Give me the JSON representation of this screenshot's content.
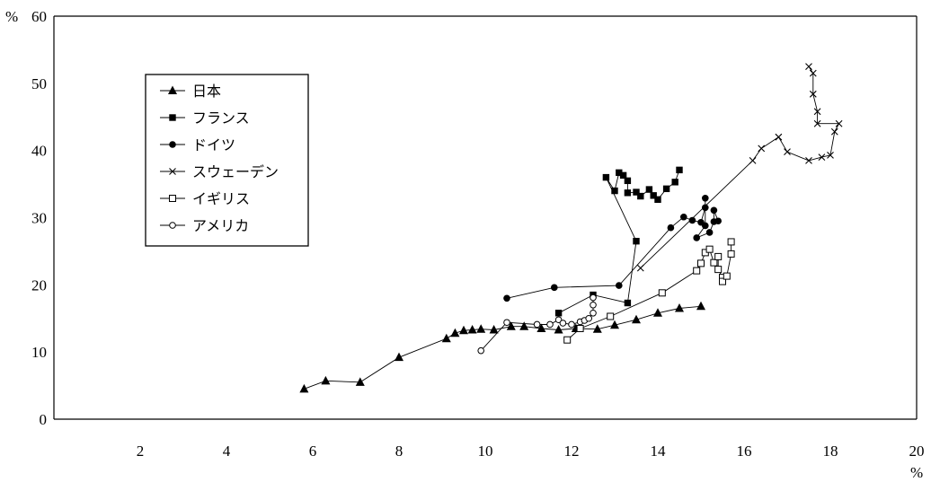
{
  "chart_data": {
    "type": "scatter",
    "title": "",
    "xlabel": "",
    "ylabel": "",
    "x_unit": "%",
    "y_unit": "%",
    "xlim": [
      0,
      20
    ],
    "ylim": [
      0,
      60
    ],
    "x_ticks": [
      2,
      4,
      6,
      8,
      10,
      12,
      14,
      16,
      18,
      20
    ],
    "y_ticks": [
      0,
      10,
      20,
      30,
      40,
      50,
      60
    ],
    "grid": false,
    "legend_position": "upper-left",
    "series": [
      {
        "name": "日本",
        "marker": "triangle-filled",
        "points": [
          [
            5.8,
            4.5
          ],
          [
            6.3,
            5.7
          ],
          [
            7.1,
            5.5
          ],
          [
            8.0,
            9.2
          ],
          [
            9.1,
            12.0
          ],
          [
            9.3,
            12.8
          ],
          [
            9.5,
            13.2
          ],
          [
            9.7,
            13.3
          ],
          [
            9.9,
            13.4
          ],
          [
            10.2,
            13.3
          ],
          [
            10.6,
            13.8
          ],
          [
            10.9,
            13.8
          ],
          [
            11.3,
            13.5
          ],
          [
            11.7,
            13.3
          ],
          [
            12.1,
            13.5
          ],
          [
            12.6,
            13.4
          ],
          [
            13.0,
            14.0
          ],
          [
            13.5,
            14.8
          ],
          [
            14.0,
            15.8
          ],
          [
            14.5,
            16.5
          ],
          [
            15.0,
            16.8
          ]
        ]
      },
      {
        "name": "フランス",
        "marker": "square-filled",
        "points": [
          [
            11.7,
            15.8
          ],
          [
            12.5,
            18.5
          ],
          [
            13.3,
            17.3
          ],
          [
            13.5,
            26.5
          ],
          [
            12.8,
            36.0
          ],
          [
            13.0,
            34.0
          ],
          [
            13.1,
            36.7
          ],
          [
            13.2,
            36.3
          ],
          [
            13.3,
            35.5
          ],
          [
            13.3,
            33.7
          ],
          [
            13.5,
            33.8
          ],
          [
            13.6,
            33.2
          ],
          [
            13.8,
            34.2
          ],
          [
            13.9,
            33.3
          ],
          [
            14.0,
            32.7
          ],
          [
            14.2,
            34.3
          ],
          [
            14.4,
            35.3
          ],
          [
            14.5,
            37.1
          ]
        ]
      },
      {
        "name": "ドイツ",
        "marker": "circle-filled",
        "points": [
          [
            10.5,
            18.0
          ],
          [
            11.6,
            19.6
          ],
          [
            13.1,
            19.9
          ],
          [
            14.3,
            28.5
          ],
          [
            14.6,
            30.1
          ],
          [
            14.8,
            29.6
          ],
          [
            15.0,
            29.3
          ],
          [
            15.1,
            31.5
          ],
          [
            15.1,
            32.9
          ],
          [
            15.1,
            28.8
          ],
          [
            14.9,
            27.0
          ],
          [
            15.2,
            27.8
          ],
          [
            15.3,
            29.4
          ],
          [
            15.3,
            31.1
          ],
          [
            15.4,
            29.5
          ]
        ]
      },
      {
        "name": "スウェーデン",
        "marker": "x",
        "points": [
          [
            13.6,
            22.5
          ],
          [
            16.2,
            38.5
          ],
          [
            16.4,
            40.3
          ],
          [
            16.8,
            42.0
          ],
          [
            17.0,
            39.8
          ],
          [
            17.5,
            38.5
          ],
          [
            17.8,
            39.0
          ],
          [
            18.0,
            39.3
          ],
          [
            18.1,
            42.8
          ],
          [
            18.2,
            44.0
          ],
          [
            17.7,
            44.0
          ],
          [
            17.7,
            45.8
          ],
          [
            17.6,
            48.4
          ],
          [
            17.6,
            51.5
          ],
          [
            17.5,
            52.5
          ]
        ]
      },
      {
        "name": "イギリス",
        "marker": "square-open",
        "points": [
          [
            11.9,
            11.8
          ],
          [
            12.2,
            13.5
          ],
          [
            12.9,
            15.3
          ],
          [
            14.1,
            18.8
          ],
          [
            14.9,
            22.1
          ],
          [
            15.0,
            23.2
          ],
          [
            15.1,
            24.8
          ],
          [
            15.2,
            25.3
          ],
          [
            15.3,
            23.3
          ],
          [
            15.4,
            24.2
          ],
          [
            15.4,
            22.3
          ],
          [
            15.5,
            21.1
          ],
          [
            15.5,
            20.5
          ],
          [
            15.6,
            21.3
          ],
          [
            15.7,
            24.6
          ],
          [
            15.7,
            26.4
          ]
        ]
      },
      {
        "name": "アメリカ",
        "marker": "circle-open",
        "points": [
          [
            9.9,
            10.2
          ],
          [
            10.5,
            14.4
          ],
          [
            11.2,
            14.1
          ],
          [
            11.5,
            14.1
          ],
          [
            11.7,
            14.8
          ],
          [
            11.8,
            14.3
          ],
          [
            12.0,
            14.1
          ],
          [
            12.2,
            14.5
          ],
          [
            12.3,
            14.7
          ],
          [
            12.4,
            15.0
          ],
          [
            12.5,
            15.8
          ],
          [
            12.5,
            17.0
          ],
          [
            12.5,
            18.1
          ]
        ]
      }
    ]
  }
}
